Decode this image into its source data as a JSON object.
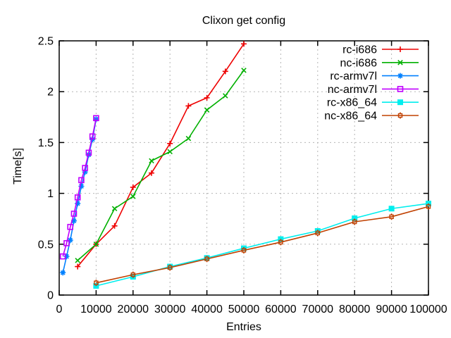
{
  "page": {
    "background": "#ffffff"
  },
  "chart_data": {
    "type": "line",
    "title": "Clixon get config",
    "xlabel": "Entries",
    "ylabel": "Time[s]",
    "xlim": [
      0,
      100000
    ],
    "ylim": [
      0,
      2.5
    ],
    "xticks": [
      0,
      10000,
      20000,
      30000,
      40000,
      50000,
      60000,
      70000,
      80000,
      90000,
      100000
    ],
    "xtick_labels": [
      "0",
      "10000",
      "20000",
      "30000",
      "40000",
      "50000",
      "60000",
      "70000",
      "80000",
      "90000",
      "100000"
    ],
    "yticks": [
      0,
      0.5,
      1,
      1.5,
      2,
      2.5
    ],
    "ytick_labels": [
      "0",
      "0.5",
      "1",
      "1.5",
      "2",
      "2.5"
    ],
    "grid": true,
    "grid_style": "dashed",
    "grid_color": "#b5b5b5",
    "axis_color": "#000000",
    "legend_position": "top-right-inside",
    "series": [
      {
        "name": "rc-i686",
        "color": "#ee0000",
        "marker": "plus",
        "x": [
          5000,
          10000,
          15000,
          20000,
          25000,
          30000,
          35000,
          40000,
          45000,
          50000
        ],
        "y": [
          0.28,
          0.5,
          0.68,
          1.06,
          1.2,
          1.49,
          1.86,
          1.94,
          2.2,
          2.47
        ]
      },
      {
        "name": "nc-i686",
        "color": "#00b000",
        "marker": "cross",
        "x": [
          5000,
          10000,
          15000,
          20000,
          25000,
          30000,
          35000,
          40000,
          45000,
          50000
        ],
        "y": [
          0.34,
          0.5,
          0.85,
          0.97,
          1.32,
          1.41,
          1.54,
          1.82,
          1.96,
          2.21
        ]
      },
      {
        "name": "rc-armv7l",
        "color": "#0080ff",
        "marker": "asterisk",
        "x": [
          1000,
          2000,
          3000,
          4000,
          5000,
          6000,
          7000,
          8000,
          9000,
          10000
        ],
        "y": [
          0.22,
          0.38,
          0.54,
          0.73,
          0.9,
          1.07,
          1.21,
          1.38,
          1.53,
          1.73
        ]
      },
      {
        "name": "nc-armv7l",
        "color": "#c000ff",
        "marker": "open-square",
        "x": [
          1000,
          2000,
          3000,
          4000,
          5000,
          6000,
          7000,
          8000,
          9000,
          10000
        ],
        "y": [
          0.38,
          0.51,
          0.67,
          0.8,
          0.96,
          1.13,
          1.25,
          1.4,
          1.56,
          1.74
        ]
      },
      {
        "name": "rc-x86_64",
        "color": "#00eeee",
        "marker": "filled-square",
        "x": [
          10000,
          20000,
          30000,
          40000,
          50000,
          60000,
          70000,
          80000,
          90000,
          100000
        ],
        "y": [
          0.09,
          0.18,
          0.28,
          0.365,
          0.46,
          0.55,
          0.63,
          0.755,
          0.85,
          0.9
        ]
      },
      {
        "name": "nc-x86_64",
        "color": "#c04000",
        "marker": "notched-square",
        "x": [
          10000,
          20000,
          30000,
          40000,
          50000,
          60000,
          70000,
          80000,
          90000,
          100000
        ],
        "y": [
          0.12,
          0.2,
          0.27,
          0.355,
          0.44,
          0.52,
          0.61,
          0.72,
          0.77,
          0.87
        ]
      }
    ]
  }
}
